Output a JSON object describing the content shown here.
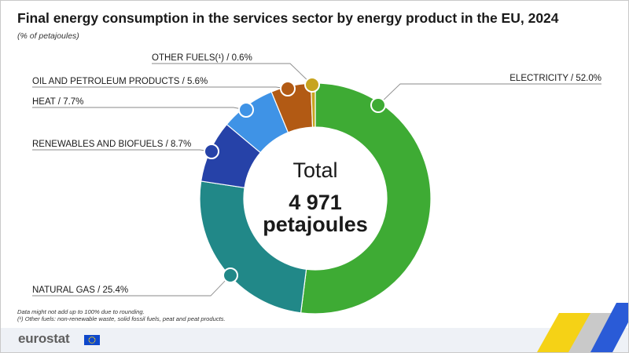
{
  "header": {
    "title": "Final energy consumption in the services sector by energy product in the EU, 2024",
    "subtitle": "(% of petajoules)"
  },
  "chart_data": {
    "type": "pie",
    "variant": "donut",
    "title": "Final energy consumption in the services sector by energy product in the EU, 2024",
    "subtitle": "(% of petajoules)",
    "unit": "% of petajoules",
    "categories": [
      "ELECTRICITY",
      "NATURAL GAS",
      "RENEWABLES AND BIOFUELS",
      "HEAT",
      "OIL AND PETROLEUM PRODUCTS",
      "OTHER FUELS(¹)"
    ],
    "values": [
      52.0,
      25.4,
      8.7,
      7.7,
      5.6,
      0.6
    ],
    "colors": [
      "#3eab34",
      "#218888",
      "#2642a8",
      "#3f93e6",
      "#b25a14",
      "#c7a41f"
    ],
    "labels": [
      "ELECTRICITY / 52.0%",
      "NATURAL GAS / 25.4%",
      "RENEWABLES AND BIOFUELS / 8.7%",
      "HEAT / 7.7%",
      "OIL AND PETROLEUM PRODUCTS / 5.6%",
      "OTHER FUELS(¹) / 0.6%"
    ],
    "center": {
      "line1": "Total",
      "line2": "4 971",
      "line3": "petajoules"
    },
    "legend": "none"
  },
  "notes": {
    "line1": "Data might not add up to 100% due to rounding.",
    "line2": "(¹) Other fuels: non-renewable waste, solid fossil fuels, peat and peat products."
  },
  "footer": {
    "logo_text": "eurostat",
    "flag_color": "#0e47cb",
    "stripe_colors": [
      "#f5d216",
      "#c9c9c9",
      "#2a5bd7"
    ]
  }
}
